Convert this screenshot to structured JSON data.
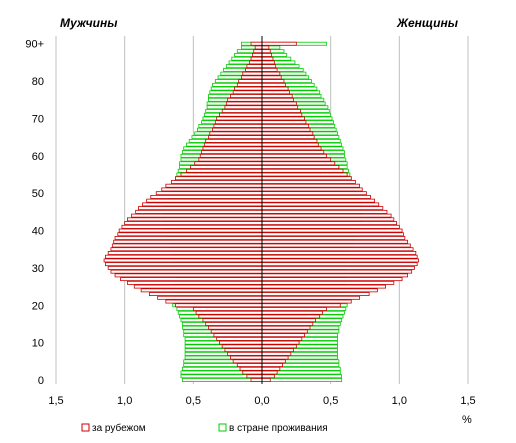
{
  "chart_data": {
    "type": "bar",
    "orientation": "horizontal",
    "subtype": "population-pyramid",
    "left_header": "Мужчины",
    "right_header": "Женщины",
    "unit_label": "%",
    "y_tick_labels": [
      "0",
      "10",
      "20",
      "30",
      "40",
      "50",
      "60",
      "70",
      "80",
      "90+"
    ],
    "x_tick_labels": [
      "1,5",
      "1,0",
      "0,5",
      "0,0",
      "0,5",
      "1,0",
      "1,5"
    ],
    "xlim": [
      -1.5,
      1.5
    ],
    "ylim": [
      0,
      91
    ],
    "grid": "vertical",
    "legend_position": "bottom",
    "ages": [
      0,
      1,
      2,
      3,
      4,
      5,
      6,
      7,
      8,
      9,
      10,
      11,
      12,
      13,
      14,
      15,
      16,
      17,
      18,
      19,
      20,
      21,
      22,
      23,
      24,
      25,
      26,
      27,
      28,
      29,
      30,
      31,
      32,
      33,
      34,
      35,
      36,
      37,
      38,
      39,
      40,
      41,
      42,
      43,
      44,
      45,
      46,
      47,
      48,
      49,
      50,
      51,
      52,
      53,
      54,
      55,
      56,
      57,
      58,
      59,
      60,
      61,
      62,
      63,
      64,
      65,
      66,
      67,
      68,
      69,
      70,
      71,
      72,
      73,
      74,
      75,
      76,
      77,
      78,
      79,
      80,
      81,
      82,
      83,
      84,
      85,
      86,
      87,
      88,
      89,
      90
    ],
    "series": [
      {
        "name": "за рубежом",
        "color": "#cc0000",
        "fill": "#ffffff",
        "men": [
          0.08,
          0.11,
          0.14,
          0.16,
          0.18,
          0.21,
          0.23,
          0.25,
          0.27,
          0.29,
          0.31,
          0.33,
          0.35,
          0.37,
          0.39,
          0.41,
          0.43,
          0.46,
          0.48,
          0.5,
          0.63,
          0.7,
          0.76,
          0.82,
          0.88,
          0.93,
          0.98,
          1.03,
          1.07,
          1.1,
          1.12,
          1.14,
          1.15,
          1.14,
          1.12,
          1.1,
          1.09,
          1.08,
          1.07,
          1.05,
          1.04,
          1.02,
          1.0,
          0.98,
          0.95,
          0.92,
          0.9,
          0.87,
          0.84,
          0.81,
          0.77,
          0.73,
          0.7,
          0.66,
          0.63,
          0.59,
          0.55,
          0.52,
          0.49,
          0.46,
          0.45,
          0.44,
          0.43,
          0.42,
          0.41,
          0.39,
          0.38,
          0.36,
          0.35,
          0.34,
          0.33,
          0.31,
          0.29,
          0.27,
          0.26,
          0.25,
          0.23,
          0.21,
          0.2,
          0.18,
          0.17,
          0.15,
          0.14,
          0.12,
          0.11,
          0.09,
          0.08,
          0.07,
          0.06,
          0.05,
          0.08
        ],
        "women": [
          0.06,
          0.09,
          0.11,
          0.13,
          0.15,
          0.17,
          0.19,
          0.21,
          0.23,
          0.25,
          0.27,
          0.29,
          0.31,
          0.33,
          0.35,
          0.37,
          0.39,
          0.42,
          0.44,
          0.47,
          0.57,
          0.65,
          0.71,
          0.78,
          0.84,
          0.9,
          0.96,
          1.02,
          1.06,
          1.09,
          1.11,
          1.13,
          1.14,
          1.13,
          1.12,
          1.1,
          1.08,
          1.06,
          1.04,
          1.03,
          1.02,
          1.0,
          0.98,
          0.96,
          0.94,
          0.91,
          0.88,
          0.85,
          0.82,
          0.79,
          0.76,
          0.73,
          0.71,
          0.68,
          0.65,
          0.62,
          0.59,
          0.56,
          0.53,
          0.5,
          0.47,
          0.45,
          0.43,
          0.41,
          0.4,
          0.38,
          0.37,
          0.35,
          0.34,
          0.32,
          0.31,
          0.29,
          0.28,
          0.26,
          0.25,
          0.23,
          0.22,
          0.2,
          0.19,
          0.17,
          0.16,
          0.14,
          0.13,
          0.11,
          0.1,
          0.09,
          0.08,
          0.07,
          0.06,
          0.05,
          0.25
        ]
      },
      {
        "name": "в стране проживания",
        "color": "#00cc00",
        "fill": "#ffffff",
        "men": [
          0.58,
          0.59,
          0.59,
          0.58,
          0.57,
          0.57,
          0.56,
          0.56,
          0.56,
          0.56,
          0.56,
          0.56,
          0.57,
          0.57,
          0.58,
          0.58,
          0.59,
          0.6,
          0.61,
          0.62,
          0.65,
          0.66,
          0.66,
          0.66,
          0.65,
          0.64,
          0.64,
          0.63,
          0.63,
          0.63,
          0.63,
          0.63,
          0.64,
          0.64,
          0.65,
          0.66,
          0.67,
          0.68,
          0.69,
          0.7,
          0.71,
          0.72,
          0.72,
          0.72,
          0.72,
          0.72,
          0.71,
          0.7,
          0.69,
          0.68,
          0.67,
          0.66,
          0.65,
          0.64,
          0.63,
          0.62,
          0.61,
          0.6,
          0.6,
          0.59,
          0.59,
          0.58,
          0.57,
          0.55,
          0.53,
          0.51,
          0.49,
          0.47,
          0.46,
          0.44,
          0.43,
          0.42,
          0.41,
          0.4,
          0.4,
          0.39,
          0.39,
          0.38,
          0.37,
          0.36,
          0.34,
          0.32,
          0.3,
          0.28,
          0.26,
          0.24,
          0.22,
          0.2,
          0.18,
          0.15,
          0.15
        ],
        "women": [
          0.58,
          0.58,
          0.57,
          0.57,
          0.56,
          0.56,
          0.55,
          0.55,
          0.55,
          0.55,
          0.55,
          0.55,
          0.55,
          0.56,
          0.56,
          0.57,
          0.58,
          0.59,
          0.6,
          0.61,
          0.62,
          0.62,
          0.62,
          0.62,
          0.62,
          0.61,
          0.61,
          0.61,
          0.61,
          0.61,
          0.61,
          0.62,
          0.62,
          0.63,
          0.64,
          0.65,
          0.66,
          0.67,
          0.68,
          0.69,
          0.7,
          0.71,
          0.72,
          0.73,
          0.73,
          0.73,
          0.72,
          0.72,
          0.71,
          0.7,
          0.69,
          0.68,
          0.67,
          0.66,
          0.65,
          0.64,
          0.63,
          0.62,
          0.62,
          0.61,
          0.6,
          0.6,
          0.59,
          0.58,
          0.57,
          0.56,
          0.55,
          0.54,
          0.53,
          0.52,
          0.51,
          0.5,
          0.49,
          0.48,
          0.46,
          0.45,
          0.43,
          0.42,
          0.4,
          0.38,
          0.36,
          0.34,
          0.32,
          0.3,
          0.27,
          0.24,
          0.21,
          0.18,
          0.16,
          0.13,
          0.47
        ]
      }
    ]
  }
}
